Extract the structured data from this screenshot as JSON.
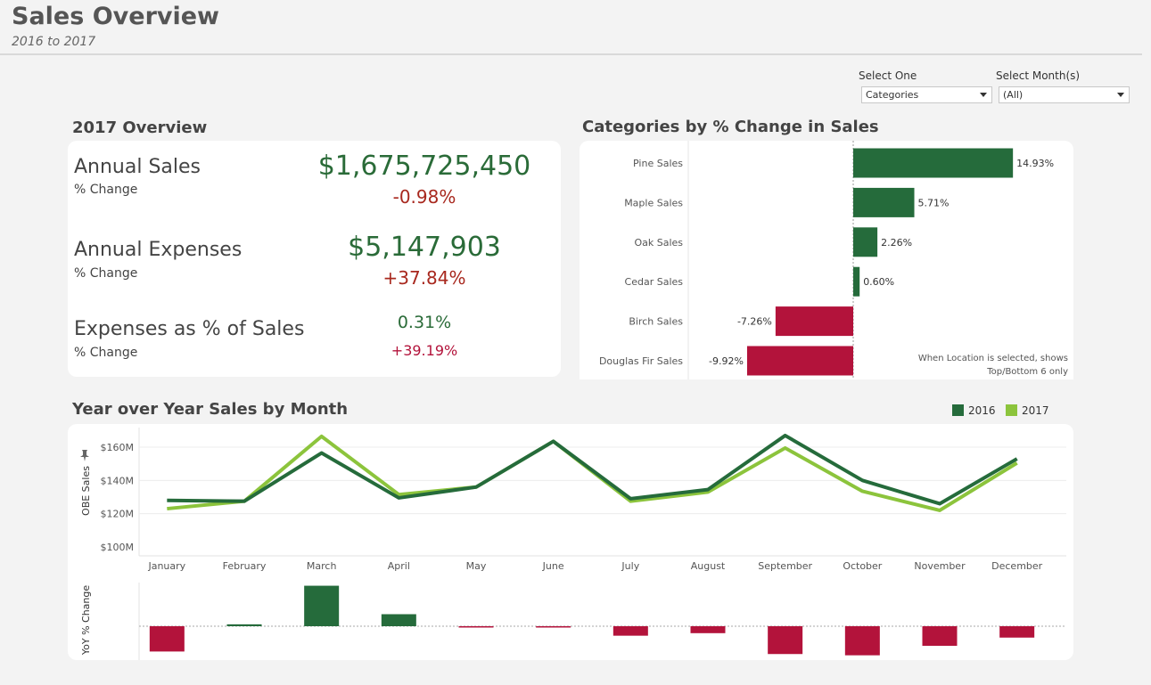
{
  "header": {
    "title": "Sales Overview",
    "subtitle": "2016 to 2017"
  },
  "filters": {
    "select_one": {
      "label": "Select One",
      "value": "Categories"
    },
    "select_month": {
      "label": "Select Month(s)",
      "value": "(All)"
    }
  },
  "overview": {
    "title": "2017 Overview",
    "rows": [
      {
        "label": "Annual Sales",
        "sub": "% Change",
        "value": "$1,675,725,450",
        "change": "-0.98%"
      },
      {
        "label": "Annual Expenses",
        "sub": "% Change",
        "value": "$5,147,903",
        "change": "+37.84%"
      },
      {
        "label": "Expenses as % of Sales",
        "sub": "% Change",
        "value": "0.31%",
        "change": "+39.19%"
      }
    ]
  },
  "categories": {
    "title": "Categories by % Change in Sales",
    "note_line1": "When Location is selected, shows",
    "note_line2": "Top/Bottom 6 only"
  },
  "yoy": {
    "title": "Year over Year Sales by Month",
    "legend": [
      "2016",
      "2017"
    ],
    "ylabel_top": "OBE Sales",
    "ylabel_bottom": "YoY % Change"
  },
  "colors": {
    "positive": "#256b3b",
    "negative": "#b3133b",
    "light_green": "#8cc43c",
    "change_red": "#a8281e"
  },
  "chart_data": [
    {
      "type": "bar",
      "orientation": "horizontal",
      "title": "Categories by % Change in Sales",
      "categories": [
        "Pine Sales",
        "Maple Sales",
        "Oak Sales",
        "Cedar Sales",
        "Birch Sales",
        "Douglas Fir Sales"
      ],
      "values": [
        14.93,
        5.71,
        2.26,
        0.6,
        -7.26,
        -9.92
      ],
      "labels": [
        "14.93%",
        "5.71%",
        "2.26%",
        "0.60%",
        "-7.26%",
        "-9.92%"
      ]
    },
    {
      "type": "line",
      "title": "Year over Year Sales by Month",
      "ylabel": "OBE Sales",
      "categories": [
        "January",
        "February",
        "March",
        "April",
        "May",
        "June",
        "July",
        "August",
        "September",
        "October",
        "November",
        "December"
      ],
      "yticks": [
        "$100M",
        "$120M",
        "$140M",
        "$160M"
      ],
      "ylim": [
        100,
        166
      ],
      "series": [
        {
          "name": "2016",
          "values": [
            128,
            127.5,
            156.5,
            129.5,
            136,
            163.5,
            129,
            134.5,
            167,
            140,
            126,
            153
          ]
        },
        {
          "name": "2017",
          "values": [
            123,
            127.5,
            166.5,
            131.5,
            136,
            163.5,
            127.5,
            133,
            159.5,
            133.5,
            122,
            150.5
          ]
        }
      ]
    },
    {
      "type": "bar",
      "title": "",
      "ylabel": "YoY % Change",
      "categories": [
        "January",
        "February",
        "March",
        "April",
        "May",
        "June",
        "July",
        "August",
        "September",
        "October",
        "November",
        "December"
      ],
      "values": [
        -4.0,
        0.3,
        6.4,
        1.9,
        -0.2,
        -0.1,
        -1.5,
        -1.1,
        -4.4,
        -4.6,
        -3.1,
        -1.8
      ]
    }
  ]
}
